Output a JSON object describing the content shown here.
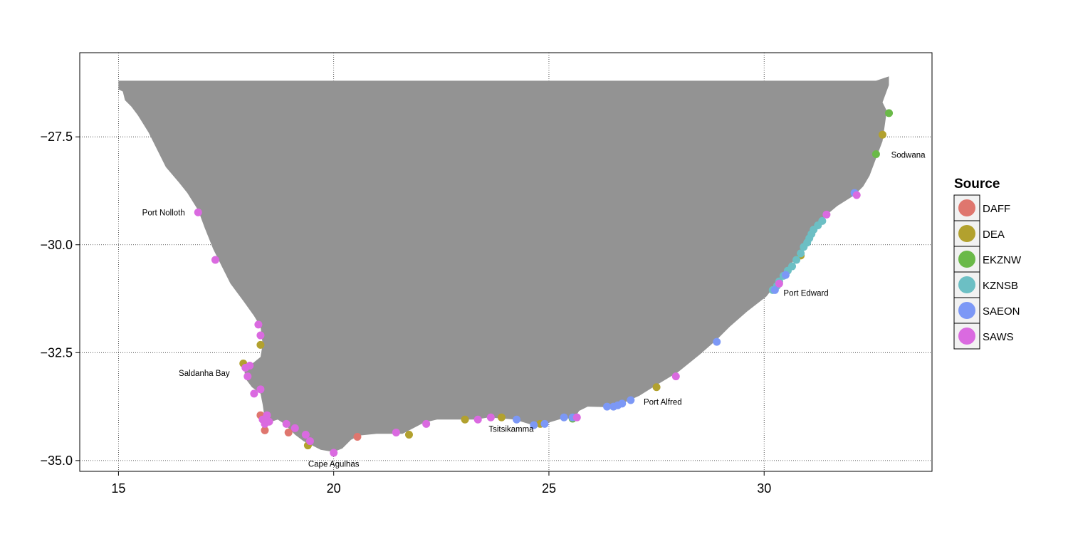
{
  "chart_data": {
    "type": "scatter",
    "title": "",
    "xlabel": "",
    "ylabel": "",
    "xlim": [
      14.1,
      33.9
    ],
    "ylim": [
      -35.25,
      -25.55
    ],
    "x_ticks": [
      15,
      20,
      25,
      30
    ],
    "y_ticks": [
      -27.5,
      -30.0,
      -32.5,
      -35.0
    ],
    "x_tick_labels": [
      "15",
      "20",
      "25",
      "30"
    ],
    "y_tick_labels": [
      "−27.5",
      "−30.0",
      "−32.5",
      "−35.0"
    ],
    "grid": true,
    "land_color": "#939393",
    "legend": {
      "title": "Source",
      "placement": "right",
      "entries": [
        {
          "name": "DAFF",
          "color": "#DF766E"
        },
        {
          "name": "DEA",
          "color": "#B2A12E"
        },
        {
          "name": "EKZNW",
          "color": "#6AB948"
        },
        {
          "name": "KZNSB",
          "color": "#6CBFC4"
        },
        {
          "name": "SAEON",
          "color": "#7C98F6"
        },
        {
          "name": "SAWS",
          "color": "#DA6AE0"
        }
      ]
    },
    "labels": [
      {
        "text": "Port Nolloth",
        "lon": 15.55,
        "lat": -29.25,
        "anchor": "start"
      },
      {
        "text": "Saldanha Bay",
        "lon": 16.4,
        "lat": -32.97,
        "anchor": "start"
      },
      {
        "text": "Cape Agulhas",
        "lon": 20.0,
        "lat": -35.08,
        "anchor": "middle"
      },
      {
        "text": "Tsitsikamma",
        "lon": 23.6,
        "lat": -34.27,
        "anchor": "start"
      },
      {
        "text": "Port Alfred",
        "lon": 27.2,
        "lat": -33.64,
        "anchor": "start"
      },
      {
        "text": "Port Edward",
        "lon": 30.45,
        "lat": -31.12,
        "anchor": "start"
      },
      {
        "text": "Sodwana",
        "lon": 32.95,
        "lat": -27.92,
        "anchor": "start"
      }
    ],
    "series": [
      {
        "name": "DAFF",
        "points": [
          [
            18.4,
            -34.3
          ],
          [
            18.95,
            -34.35
          ],
          [
            20.55,
            -34.45
          ],
          [
            18.3,
            -33.95
          ]
        ]
      },
      {
        "name": "DEA",
        "points": [
          [
            17.9,
            -32.75
          ],
          [
            18.3,
            -32.32
          ],
          [
            19.4,
            -34.65
          ],
          [
            21.75,
            -34.4
          ],
          [
            23.05,
            -34.05
          ],
          [
            23.9,
            -34.0
          ],
          [
            24.8,
            -34.15
          ],
          [
            27.5,
            -33.3
          ],
          [
            30.85,
            -30.25
          ],
          [
            32.75,
            -27.45
          ]
        ]
      },
      {
        "name": "EKZNW",
        "points": [
          [
            32.6,
            -27.9
          ],
          [
            32.9,
            -26.95
          ],
          [
            25.55,
            -34.03
          ]
        ]
      },
      {
        "name": "KZNSB",
        "points": [
          [
            30.2,
            -31.05
          ],
          [
            30.3,
            -30.95
          ],
          [
            30.35,
            -30.85
          ],
          [
            30.45,
            -30.72
          ],
          [
            30.55,
            -30.6
          ],
          [
            30.65,
            -30.5
          ],
          [
            30.75,
            -30.35
          ],
          [
            30.85,
            -30.2
          ],
          [
            30.92,
            -30.05
          ],
          [
            31.0,
            -29.95
          ],
          [
            31.05,
            -29.85
          ],
          [
            31.1,
            -29.75
          ],
          [
            31.15,
            -29.65
          ],
          [
            31.25,
            -29.55
          ],
          [
            31.35,
            -29.45
          ]
        ]
      },
      {
        "name": "SAEON",
        "points": [
          [
            24.25,
            -34.05
          ],
          [
            24.65,
            -34.18
          ],
          [
            24.9,
            -34.15
          ],
          [
            25.35,
            -34.0
          ],
          [
            25.55,
            -34.0
          ],
          [
            26.35,
            -33.75
          ],
          [
            26.5,
            -33.75
          ],
          [
            26.6,
            -33.72
          ],
          [
            26.7,
            -33.68
          ],
          [
            26.9,
            -33.6
          ],
          [
            28.9,
            -32.25
          ],
          [
            32.1,
            -28.8
          ],
          [
            30.25,
            -31.05
          ],
          [
            30.5,
            -30.7
          ]
        ]
      },
      {
        "name": "SAWS",
        "points": [
          [
            16.85,
            -29.25
          ],
          [
            17.25,
            -30.35
          ],
          [
            18.25,
            -31.85
          ],
          [
            18.3,
            -32.1
          ],
          [
            17.95,
            -32.85
          ],
          [
            18.0,
            -33.05
          ],
          [
            18.05,
            -32.8
          ],
          [
            18.15,
            -33.45
          ],
          [
            18.3,
            -33.35
          ],
          [
            18.35,
            -34.05
          ],
          [
            18.4,
            -34.15
          ],
          [
            18.5,
            -34.1
          ],
          [
            18.45,
            -33.95
          ],
          [
            18.9,
            -34.15
          ],
          [
            19.1,
            -34.25
          ],
          [
            19.35,
            -34.4
          ],
          [
            19.45,
            -34.55
          ],
          [
            20.0,
            -34.82
          ],
          [
            21.45,
            -34.35
          ],
          [
            22.15,
            -34.15
          ],
          [
            23.35,
            -34.05
          ],
          [
            23.65,
            -34.0
          ],
          [
            25.65,
            -34.0
          ],
          [
            27.95,
            -33.05
          ],
          [
            31.45,
            -29.3
          ],
          [
            32.15,
            -28.85
          ],
          [
            30.35,
            -30.9
          ]
        ]
      }
    ]
  }
}
